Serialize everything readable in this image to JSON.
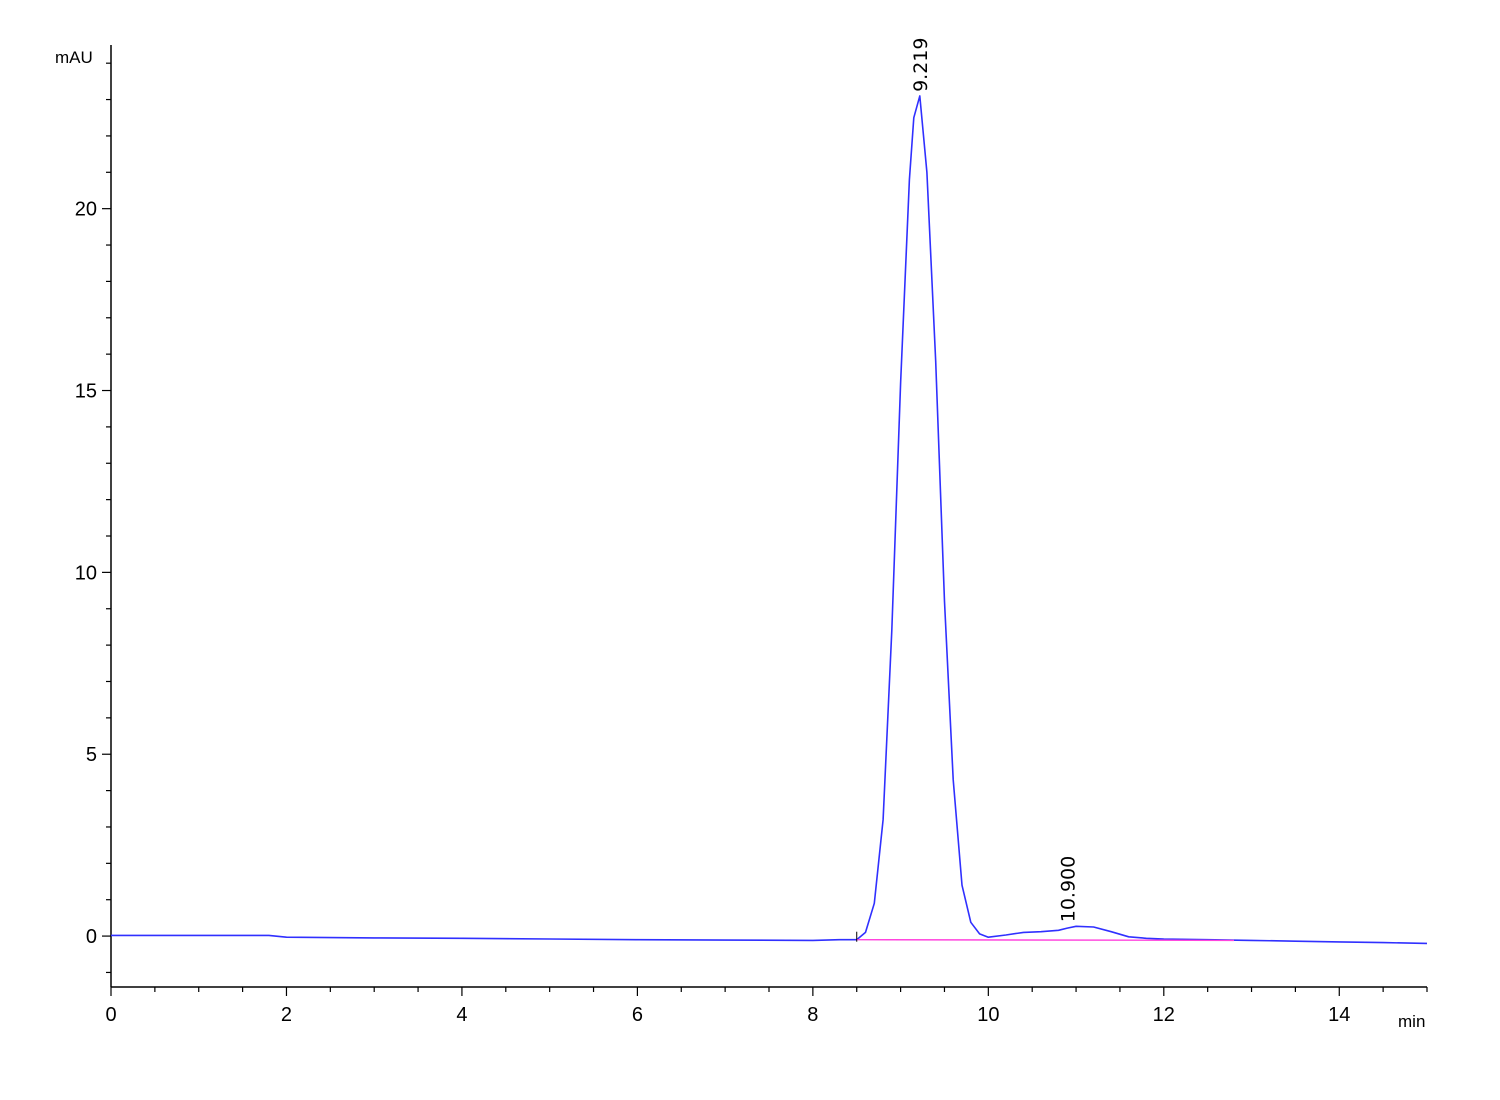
{
  "chart_data": {
    "type": "line",
    "title": "",
    "xlabel": "min",
    "ylabel": "mAU",
    "xlim": [
      0,
      15
    ],
    "ylim": [
      -1.4,
      24.5
    ],
    "x_ticks": [
      0,
      2,
      4,
      6,
      8,
      10,
      12,
      14
    ],
    "x_tick_labels": [
      "0",
      "2",
      "4",
      "6",
      "8",
      "10",
      "12",
      "14"
    ],
    "y_ticks": [
      0,
      5,
      10,
      15,
      20
    ],
    "y_tick_labels": [
      "0",
      "5",
      "10",
      "15",
      "20"
    ],
    "grid": false,
    "legend": "none",
    "colors": {
      "signal": "#3030ff",
      "baseline": "#ff44dd",
      "axis": "#000000"
    },
    "series": [
      {
        "role": "signal",
        "x": [
          0,
          1.8,
          2.0,
          3.0,
          4.0,
          5.0,
          6.0,
          7.0,
          8.0,
          8.3,
          8.5,
          8.6,
          8.7,
          8.8,
          8.9,
          9.0,
          9.1,
          9.15,
          9.219,
          9.3,
          9.4,
          9.5,
          9.6,
          9.7,
          9.8,
          9.9,
          10.0,
          10.2,
          10.4,
          10.6,
          10.8,
          10.9,
          11.0,
          11.2,
          11.4,
          11.6,
          11.8,
          12.0,
          12.5,
          13.0,
          13.5,
          14.0,
          14.5,
          15.0
        ],
        "y": [
          0.02,
          0.02,
          -0.03,
          -0.05,
          -0.06,
          -0.08,
          -0.1,
          -0.11,
          -0.12,
          -0.1,
          -0.1,
          0.1,
          0.9,
          3.2,
          8.4,
          15.2,
          20.8,
          22.5,
          23.1,
          21.0,
          15.8,
          9.2,
          4.3,
          1.4,
          0.38,
          0.06,
          -0.03,
          0.03,
          0.1,
          0.12,
          0.16,
          0.22,
          0.27,
          0.25,
          0.12,
          -0.02,
          -0.06,
          -0.08,
          -0.1,
          -0.12,
          -0.14,
          -0.16,
          -0.18,
          -0.2
        ]
      },
      {
        "role": "integration-baseline",
        "x": [
          8.5,
          12.8
        ],
        "y": [
          -0.1,
          -0.12
        ]
      }
    ],
    "peak_labels": [
      {
        "x": 9.219,
        "y": 23.1,
        "label": "9.219"
      },
      {
        "x": 10.9,
        "y": 0.27,
        "label": "10.900"
      }
    ]
  }
}
